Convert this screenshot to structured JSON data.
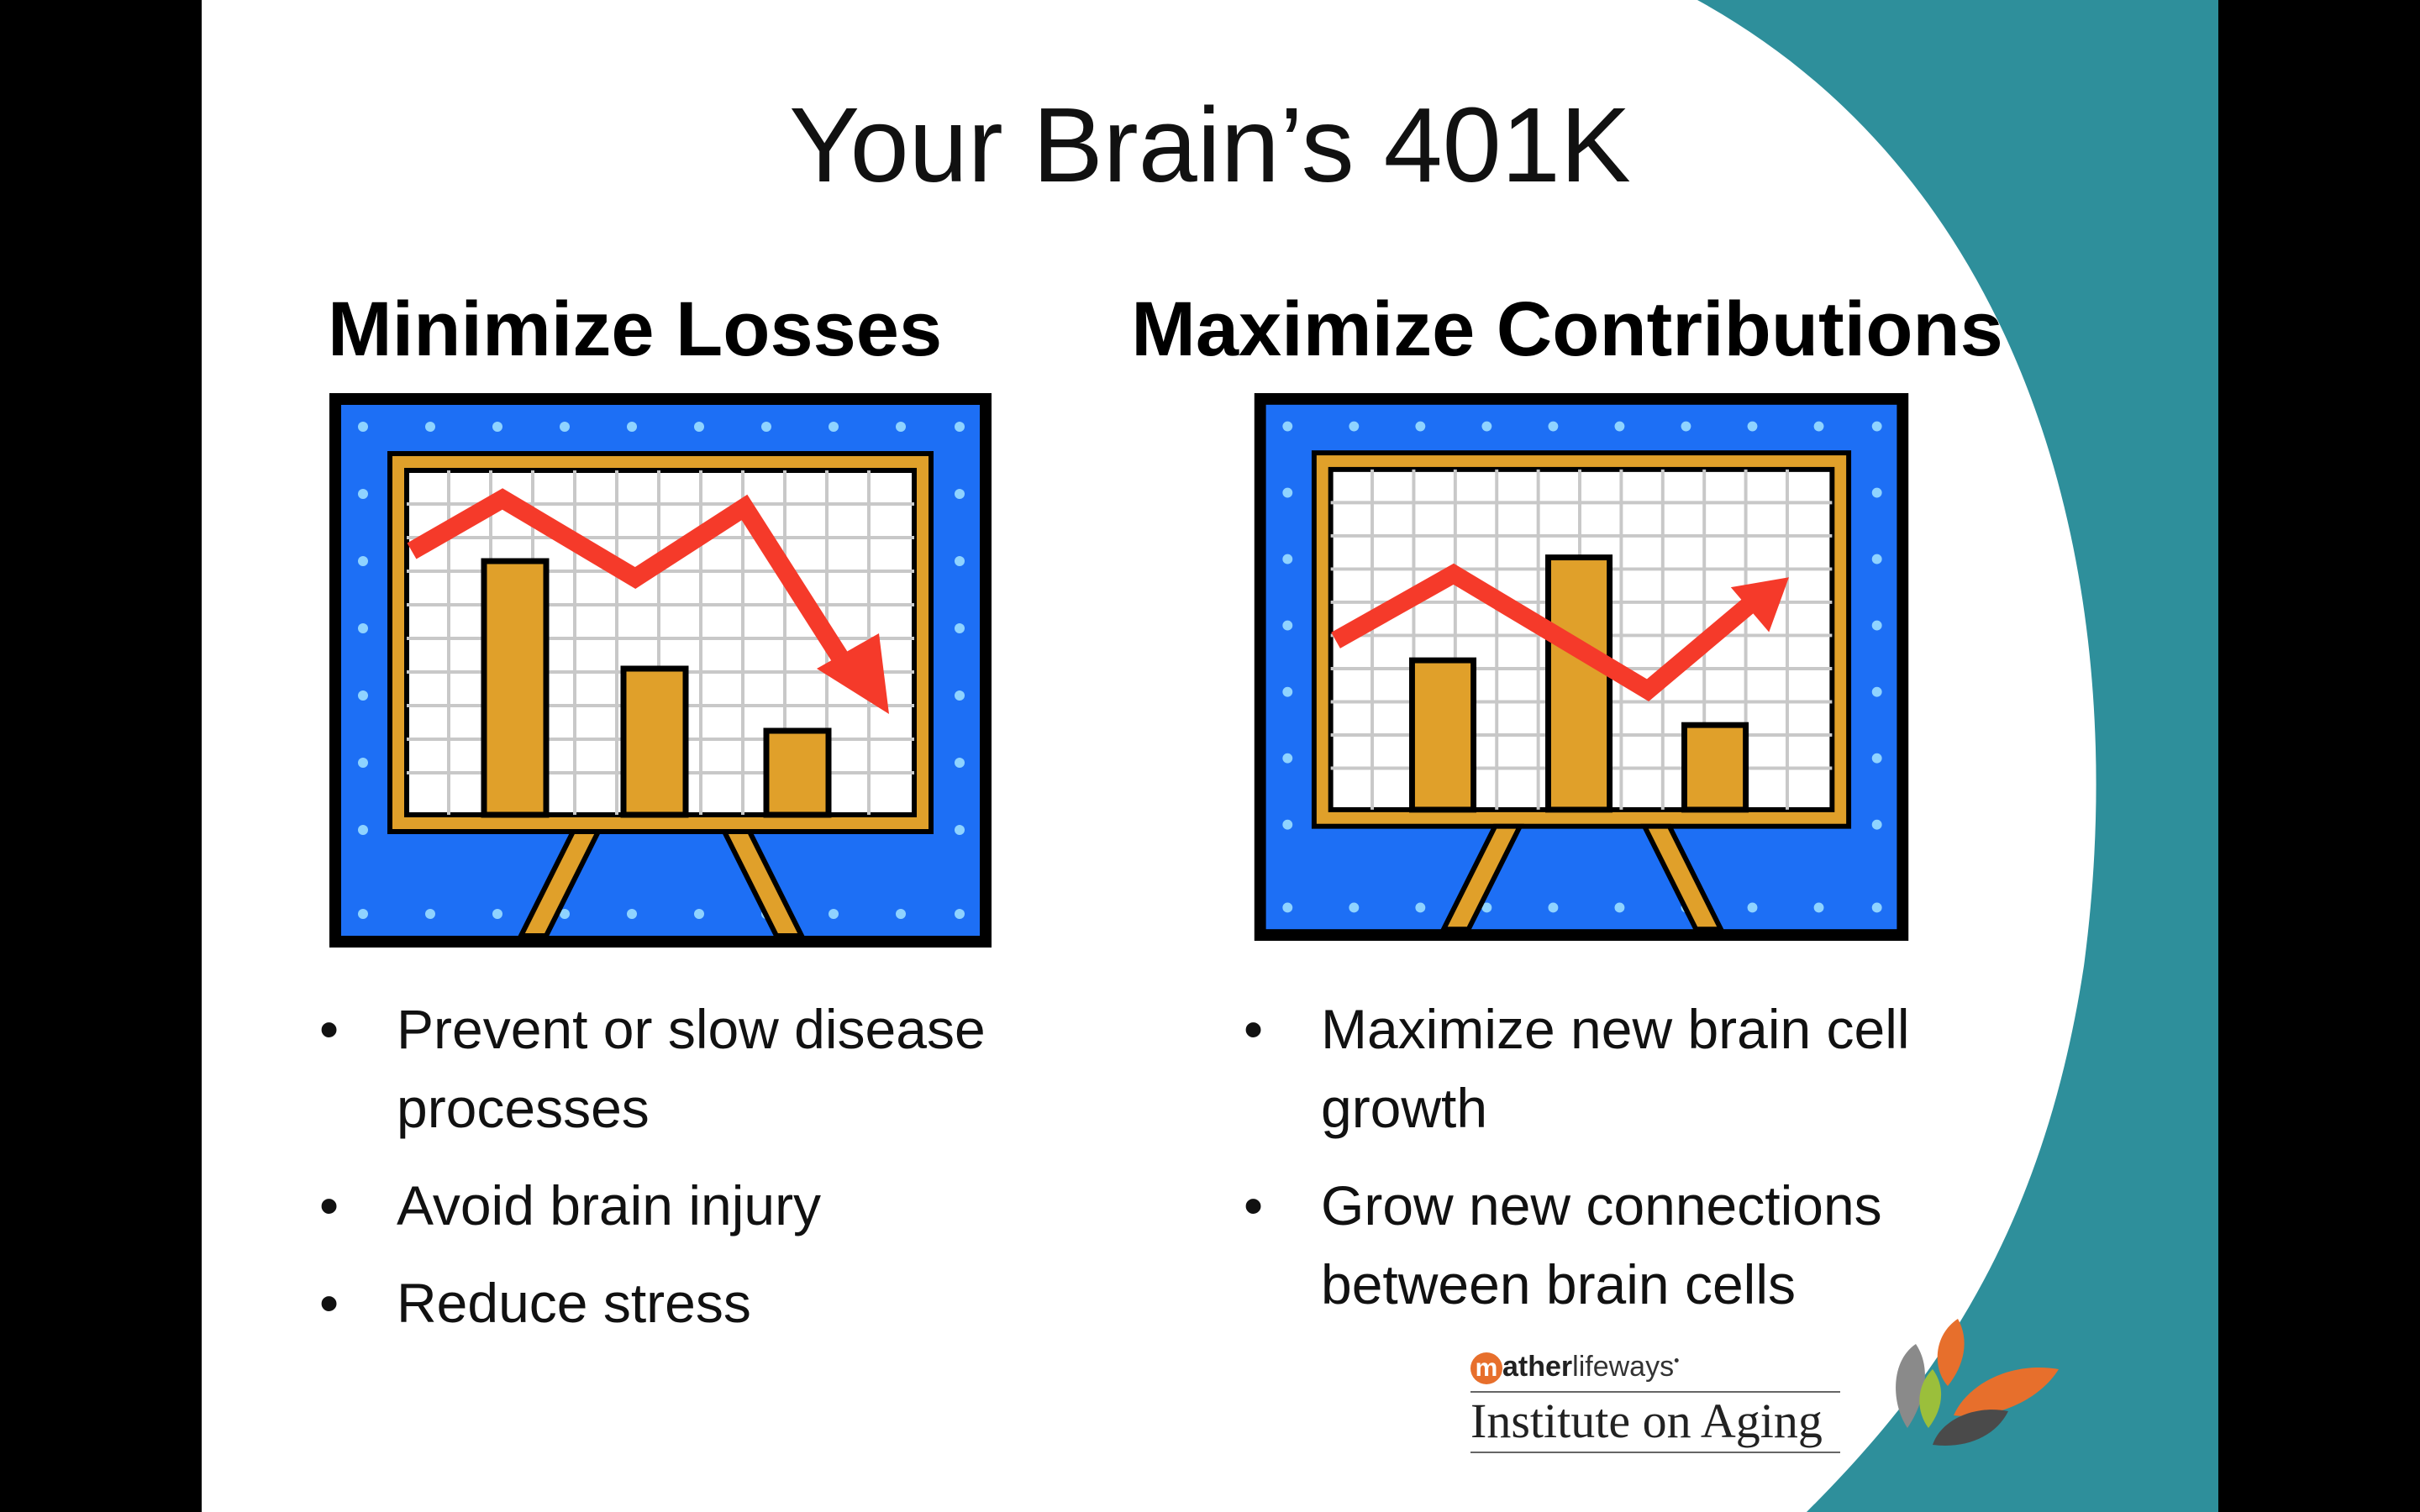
{
  "slide": {
    "title": "Your Brain’s 401K",
    "left": {
      "heading": "Minimize Losses",
      "bullets": [
        "Prevent or slow disease processes",
        "Avoid brain injury",
        "Reduce stress"
      ]
    },
    "right": {
      "heading": "Maximize Contributions",
      "bullets": [
        "Maximize new brain cell growth",
        "Grow new connections between brain cells"
      ]
    },
    "bullet_glyph": "•"
  },
  "logo": {
    "brand_m": "m",
    "brand_bold": "ather",
    "brand_light": "lifeways",
    "brand_mark": "•",
    "institute": "Institute on Aging"
  },
  "colors": {
    "teal": "#2e8f9b",
    "chart_blue": "#1d6ff5",
    "bar_gold": "#e0a02a",
    "arrow_red": "#f53a2a"
  }
}
